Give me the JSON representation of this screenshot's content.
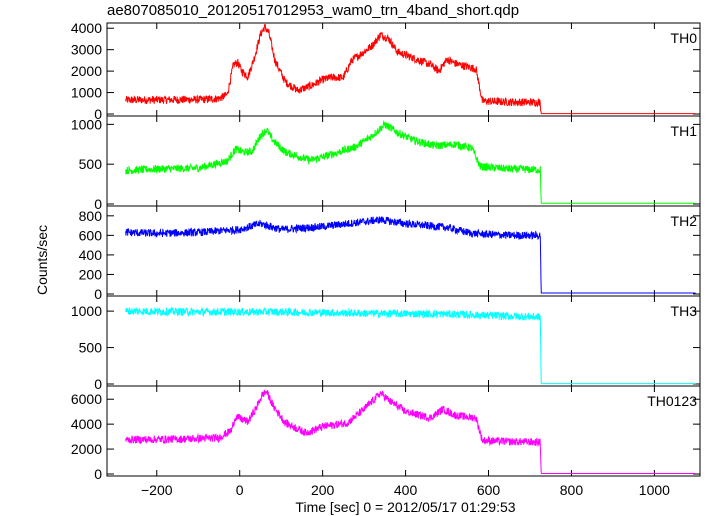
{
  "title": "ae807085010_20120517012953_wam0_trn_4band_short.qdp",
  "chart_data": {
    "type": "line",
    "title": "ae807085010_20120517012953_wam0_trn_4band_short.qdp",
    "xlabel": "Time [sec] 0 = 2012/05/17 01:29:53",
    "ylabel": "Counts/sec",
    "xlim": [
      -320,
      1110
    ],
    "x_ticks": [
      -200,
      0,
      200,
      400,
      600,
      800,
      1000
    ],
    "x_tick_labels": [
      "−200",
      "0",
      "200",
      "400",
      "600",
      "800",
      "1000"
    ],
    "grid": false,
    "legend": "none",
    "panels": [
      {
        "name": "TH0",
        "color": "#ff0000",
        "ylim": [
          0,
          4150
        ],
        "y_ticks": [
          0,
          1000,
          2000,
          3000,
          4000
        ],
        "y_tick_labels": [
          "0",
          "1000",
          "2000",
          "3000",
          "4000"
        ],
        "points": [
          [
            -275,
            650
          ],
          [
            -200,
            660
          ],
          [
            -100,
            670
          ],
          [
            -50,
            720
          ],
          [
            -30,
            900
          ],
          [
            -15,
            2300
          ],
          [
            -5,
            2400
          ],
          [
            5,
            2000
          ],
          [
            20,
            1750
          ],
          [
            35,
            2600
          ],
          [
            50,
            3700
          ],
          [
            60,
            4050
          ],
          [
            70,
            3800
          ],
          [
            85,
            2500
          ],
          [
            110,
            1500
          ],
          [
            140,
            1100
          ],
          [
            170,
            1300
          ],
          [
            200,
            1600
          ],
          [
            220,
            1700
          ],
          [
            250,
            1700
          ],
          [
            270,
            2500
          ],
          [
            300,
            2900
          ],
          [
            320,
            3200
          ],
          [
            340,
            3700
          ],
          [
            360,
            3500
          ],
          [
            380,
            2900
          ],
          [
            420,
            2600
          ],
          [
            460,
            2300
          ],
          [
            480,
            2000
          ],
          [
            500,
            2550
          ],
          [
            520,
            2350
          ],
          [
            540,
            2250
          ],
          [
            570,
            2100
          ],
          [
            585,
            600
          ],
          [
            650,
            560
          ],
          [
            725,
            540
          ],
          [
            727,
            20
          ],
          [
            1100,
            20
          ]
        ]
      },
      {
        "name": "TH1",
        "color": "#00ff00",
        "ylim": [
          0,
          1080
        ],
        "y_ticks": [
          0,
          500,
          1000
        ],
        "y_tick_labels": [
          "0",
          "500",
          "1000"
        ],
        "points": [
          [
            -275,
            420
          ],
          [
            -200,
            440
          ],
          [
            -100,
            450
          ],
          [
            -30,
            540
          ],
          [
            -10,
            690
          ],
          [
            10,
            650
          ],
          [
            30,
            660
          ],
          [
            50,
            860
          ],
          [
            65,
            930
          ],
          [
            80,
            800
          ],
          [
            110,
            650
          ],
          [
            170,
            550
          ],
          [
            220,
            620
          ],
          [
            280,
            720
          ],
          [
            320,
            860
          ],
          [
            350,
            1000
          ],
          [
            380,
            900
          ],
          [
            420,
            800
          ],
          [
            470,
            730
          ],
          [
            520,
            750
          ],
          [
            560,
            700
          ],
          [
            580,
            470
          ],
          [
            650,
            440
          ],
          [
            725,
            430
          ],
          [
            727,
            10
          ],
          [
            1100,
            10
          ]
        ]
      },
      {
        "name": "TH2",
        "color": "#0000ff",
        "ylim": [
          0,
          880
        ],
        "y_ticks": [
          0,
          200,
          400,
          600,
          800
        ],
        "y_tick_labels": [
          "0",
          "200",
          "400",
          "600",
          "800"
        ],
        "points": [
          [
            -275,
            630
          ],
          [
            -200,
            620
          ],
          [
            -100,
            630
          ],
          [
            0,
            660
          ],
          [
            50,
            720
          ],
          [
            100,
            660
          ],
          [
            200,
            690
          ],
          [
            300,
            740
          ],
          [
            340,
            760
          ],
          [
            400,
            720
          ],
          [
            500,
            680
          ],
          [
            560,
            620
          ],
          [
            650,
            600
          ],
          [
            725,
            600
          ],
          [
            727,
            10
          ],
          [
            1100,
            10
          ]
        ]
      },
      {
        "name": "TH3",
        "color": "#00ffff",
        "ylim": [
          0,
          1180
        ],
        "y_ticks": [
          0,
          500,
          1000
        ],
        "y_tick_labels": [
          "0",
          "500",
          "1000"
        ],
        "points": [
          [
            -275,
            1000
          ],
          [
            -100,
            990
          ],
          [
            100,
            990
          ],
          [
            300,
            970
          ],
          [
            500,
            960
          ],
          [
            650,
            930
          ],
          [
            725,
            920
          ],
          [
            727,
            5
          ],
          [
            1100,
            5
          ]
        ]
      },
      {
        "name": "TH0123",
        "color": "#ff00ff",
        "ylim": [
          0,
          6900
        ],
        "y_ticks": [
          0,
          2000,
          4000,
          6000
        ],
        "y_tick_labels": [
          "0",
          "2000",
          "4000",
          "6000"
        ],
        "points": [
          [
            -275,
            2750
          ],
          [
            -150,
            2800
          ],
          [
            -50,
            2900
          ],
          [
            -20,
            3500
          ],
          [
            -10,
            4600
          ],
          [
            5,
            4400
          ],
          [
            20,
            4200
          ],
          [
            40,
            5300
          ],
          [
            55,
            6400
          ],
          [
            65,
            6600
          ],
          [
            80,
            5500
          ],
          [
            110,
            4100
          ],
          [
            160,
            3300
          ],
          [
            200,
            3800
          ],
          [
            260,
            4100
          ],
          [
            300,
            5200
          ],
          [
            340,
            6500
          ],
          [
            360,
            5900
          ],
          [
            400,
            5000
          ],
          [
            460,
            4500
          ],
          [
            490,
            5200
          ],
          [
            520,
            4700
          ],
          [
            570,
            4500
          ],
          [
            585,
            2700
          ],
          [
            650,
            2600
          ],
          [
            725,
            2550
          ],
          [
            727,
            40
          ],
          [
            1100,
            40
          ]
        ]
      }
    ]
  }
}
